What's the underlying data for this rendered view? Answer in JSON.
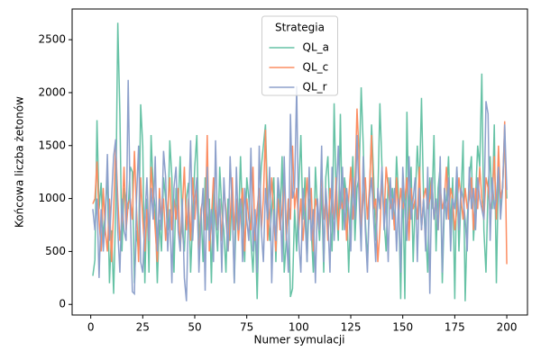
{
  "chart_data": {
    "type": "line",
    "x_label": "Numer symulacji",
    "y_label": "Końcowa liczba żetonów",
    "legend_title": "Strategia",
    "legend_loc": "upper center",
    "grid": false,
    "x": [
      1,
      2,
      3,
      4,
      5,
      6,
      7,
      8,
      9,
      10,
      11,
      12,
      13,
      14,
      15,
      16,
      17,
      18,
      19,
      20,
      21,
      22,
      23,
      24,
      25,
      26,
      27,
      28,
      29,
      30,
      31,
      32,
      33,
      34,
      35,
      36,
      37,
      38,
      39,
      40,
      41,
      42,
      43,
      44,
      45,
      46,
      47,
      48,
      49,
      50,
      51,
      52,
      53,
      54,
      55,
      56,
      57,
      58,
      59,
      60,
      61,
      62,
      63,
      64,
      65,
      66,
      67,
      68,
      69,
      70,
      71,
      72,
      73,
      74,
      75,
      76,
      77,
      78,
      79,
      80,
      81,
      82,
      83,
      84,
      85,
      86,
      87,
      88,
      89,
      90,
      91,
      92,
      93,
      94,
      95,
      96,
      97,
      98,
      99,
      100,
      101,
      102,
      103,
      104,
      105,
      106,
      107,
      108,
      109,
      110,
      111,
      112,
      113,
      114,
      115,
      116,
      117,
      118,
      119,
      120,
      121,
      122,
      123,
      124,
      125,
      126,
      127,
      128,
      129,
      130,
      131,
      132,
      133,
      134,
      135,
      136,
      137,
      138,
      139,
      140,
      141,
      142,
      143,
      144,
      145,
      146,
      147,
      148,
      149,
      150,
      151,
      152,
      153,
      154,
      155,
      156,
      157,
      158,
      159,
      160,
      161,
      162,
      163,
      164,
      165,
      166,
      167,
      168,
      169,
      170,
      171,
      172,
      173,
      174,
      175,
      176,
      177,
      178,
      179,
      180,
      181,
      182,
      183,
      184,
      185,
      186,
      187,
      188,
      189,
      190,
      191,
      192,
      193,
      194,
      195,
      196,
      197,
      198,
      199,
      200
    ],
    "series": [
      {
        "name": "QL_a",
        "color": "#66c2a5",
        "values": [
          270,
          420,
          1740,
          900,
          1150,
          600,
          900,
          1200,
          200,
          700,
          100,
          900,
          2660,
          1800,
          500,
          1100,
          1000,
          900,
          1300,
          1250,
          200,
          700,
          500,
          1890,
          1500,
          200,
          1000,
          300,
          1600,
          1100,
          900,
          200,
          800,
          500,
          1200,
          1000,
          700,
          1550,
          1200,
          300,
          1100,
          900,
          1400,
          700,
          500,
          1000,
          1150,
          300,
          800,
          1300,
          1600,
          600,
          900,
          400,
          1200,
          700,
          1000,
          200,
          1100,
          800,
          500,
          1300,
          900,
          700,
          300,
          1000,
          600,
          1100,
          200,
          900,
          700,
          1400,
          800,
          400,
          1200,
          1000,
          600,
          300,
          800,
          50,
          900,
          1300,
          1500,
          1700,
          1000,
          600,
          900,
          1200,
          400,
          1100,
          800,
          1400,
          300,
          600,
          1000,
          70,
          150,
          900,
          500,
          1100,
          1600,
          800,
          1200,
          400,
          1000,
          700,
          300,
          1300,
          900,
          600,
          1100,
          300,
          1200,
          1400,
          800,
          500,
          1900,
          1000,
          600,
          1800,
          700,
          1200,
          1000,
          300,
          900,
          1400,
          600,
          1100,
          1200,
          2050,
          1500,
          800,
          400,
          1000,
          1700,
          1200,
          600,
          1000,
          1900,
          1300,
          800,
          500,
          1200,
          900,
          1100,
          700,
          1400,
          1000,
          50,
          1200,
          50,
          1820,
          800,
          1300,
          400,
          1000,
          1500,
          1100,
          1950,
          1000,
          700,
          300,
          1200,
          900,
          1600,
          500,
          1100,
          1300,
          200,
          900,
          1000,
          1400,
          700,
          1200,
          50,
          1300,
          500,
          1000,
          1550,
          30,
          800,
          1200,
          1400,
          600,
          1000,
          1500,
          1300,
          2180,
          700,
          300,
          1100,
          1400,
          900,
          1700,
          200,
          1250,
          900,
          1100,
          1600,
          1000
        ]
      },
      {
        "name": "QL_c",
        "color": "#fc8d62",
        "values": [
          950,
          1000,
          1350,
          800,
          500,
          1100,
          700,
          500,
          1000,
          400,
          900,
          1500,
          1000,
          600,
          800,
          1300,
          700,
          950,
          1000,
          800,
          1450,
          900,
          400,
          1200,
          800,
          500,
          900,
          600,
          1300,
          1000,
          700,
          400,
          1100,
          800,
          1000,
          600,
          900,
          1200,
          700,
          1000,
          800,
          1100,
          500,
          900,
          1300,
          700,
          1000,
          600,
          1200,
          800,
          1100,
          400,
          900,
          1000,
          700,
          1600,
          500,
          800,
          1200,
          900,
          700,
          1000,
          600,
          1100,
          900,
          500,
          800,
          1200,
          700,
          1000,
          600,
          900,
          1100,
          500,
          1000,
          800,
          700,
          1300,
          600,
          900,
          1100,
          700,
          1000,
          1650,
          600,
          900,
          1200,
          800,
          500,
          1000,
          700,
          900,
          1200,
          600,
          1000,
          800,
          1500,
          900,
          1100,
          700,
          1000,
          600,
          900,
          1200,
          800,
          1100,
          500,
          1000,
          900,
          700,
          1300,
          800,
          1000,
          600,
          1100,
          900,
          800,
          1200,
          700,
          1000,
          900,
          1100,
          600,
          1000,
          1300,
          800,
          1100,
          1850,
          1400,
          700,
          1000,
          1200,
          800,
          1100,
          1600,
          900,
          1000,
          400,
          700,
          1200,
          800,
          1300,
          1100,
          900,
          1000,
          700,
          1200,
          800,
          1100,
          900,
          1000,
          1200,
          600,
          1100,
          900,
          1000,
          800,
          1300,
          700,
          1000,
          1100,
          900,
          1000,
          1200,
          800,
          1000,
          700,
          1100,
          900,
          1000,
          1300,
          800,
          1100,
          1000,
          700,
          900,
          1200,
          1000,
          800,
          1100,
          900,
          1000,
          1200,
          700,
          1100,
          900,
          1300,
          1000,
          800,
          1200,
          1100,
          900,
          1000,
          1400,
          800,
          1500,
          1000,
          1100,
          1730,
          380
        ]
      },
      {
        "name": "QL_r",
        "color": "#8da0cb",
        "values": [
          900,
          700,
          1000,
          250,
          900,
          500,
          800,
          1420,
          600,
          1000,
          1400,
          1560,
          700,
          300,
          1000,
          700,
          600,
          2120,
          900,
          120,
          100,
          1000,
          1500,
          400,
          300,
          800,
          1200,
          600,
          1100,
          800,
          1400,
          500,
          1000,
          700,
          1450,
          1200,
          500,
          900,
          200,
          1100,
          1300,
          700,
          500,
          1000,
          250,
          30,
          900,
          1550,
          600,
          1000,
          1200,
          300,
          800,
          1100,
          130,
          1300,
          600,
          900,
          400,
          1550,
          700,
          1000,
          300,
          1200,
          800,
          500,
          1400,
          900,
          200,
          1300,
          700,
          1000,
          400,
          1100,
          800,
          600,
          1480,
          500,
          900,
          300,
          1500,
          700,
          400,
          1100,
          800,
          1300,
          200,
          900,
          600,
          1200,
          1000,
          400,
          1400,
          700,
          300,
          1800,
          1000,
          1100,
          2060,
          600,
          300,
          1100,
          800,
          400,
          1300,
          600,
          900,
          200,
          1000,
          700,
          1500,
          400,
          1100,
          800,
          300,
          1300,
          600,
          1000,
          1500,
          900,
          1300,
          700,
          1100,
          900,
          500,
          1200,
          800,
          1600,
          1000,
          500,
          1400,
          700,
          300,
          1000,
          1200,
          800,
          400,
          1100,
          900,
          1300,
          700,
          1000,
          400,
          1200,
          800,
          1100,
          500,
          1000,
          300,
          1300,
          900,
          600,
          1400,
          800,
          1000,
          1200,
          400,
          1100,
          700,
          1000,
          500,
          1300,
          100,
          1200,
          800,
          1000,
          700,
          1400,
          300,
          1100,
          800,
          1200,
          500,
          1000,
          900,
          1300,
          700,
          1100,
          1000,
          800,
          500,
          1300,
          900,
          1100,
          700,
          1200,
          1000,
          900,
          800,
          1920,
          1800,
          600,
          1200,
          900,
          1000,
          1300,
          800,
          1100,
          1700,
          1080
        ]
      }
    ],
    "xlim": [
      -8.95,
      209.95
    ],
    "ylim": [
      -100,
      2790
    ],
    "xticks": [
      0,
      25,
      50,
      75,
      100,
      125,
      150,
      175,
      200
    ],
    "yticks": [
      0,
      500,
      1000,
      1500,
      2000,
      2500
    ]
  }
}
